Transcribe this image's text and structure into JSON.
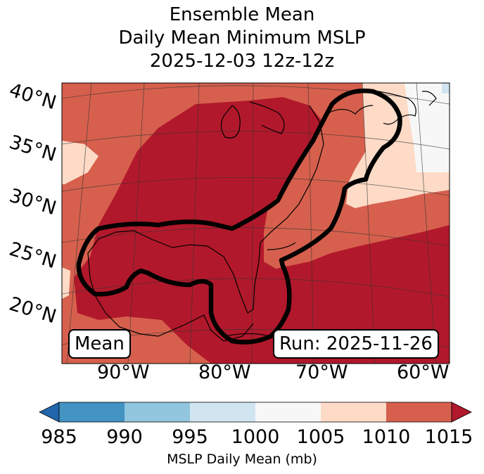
{
  "title": {
    "line1": "Ensemble Mean",
    "line2": "Daily Mean Minimum MSLP",
    "line3": "2025-12-03 12z-12z"
  },
  "latitude_labels": [
    "40°N",
    "35°N",
    "30°N",
    "25°N",
    "20°N"
  ],
  "longitude_labels": [
    "90°W",
    "80°W",
    "70°W",
    "60°W"
  ],
  "annotations": {
    "left_box": "Mean",
    "right_box": "Run: 2025-11-26"
  },
  "colorbar": {
    "ticks": [
      "985",
      "990",
      "995",
      "1000",
      "1005",
      "1010",
      "1015"
    ],
    "label": "MSLP Daily Mean (mb)",
    "colors": [
      "#2166ac",
      "#4393c3",
      "#92c5de",
      "#d1e5f0",
      "#f7f7f7",
      "#fddbc7",
      "#d6604d",
      "#b2182b"
    ]
  },
  "colors": {
    "band_1005_1010": "#fddbc7",
    "band_1010_1015": "#d6604d",
    "band_above_1015": "#b2182b",
    "band_1000_1005": "#f7f7f7",
    "band_995_1000": "#d1e5f0",
    "contour": "#000000"
  }
}
